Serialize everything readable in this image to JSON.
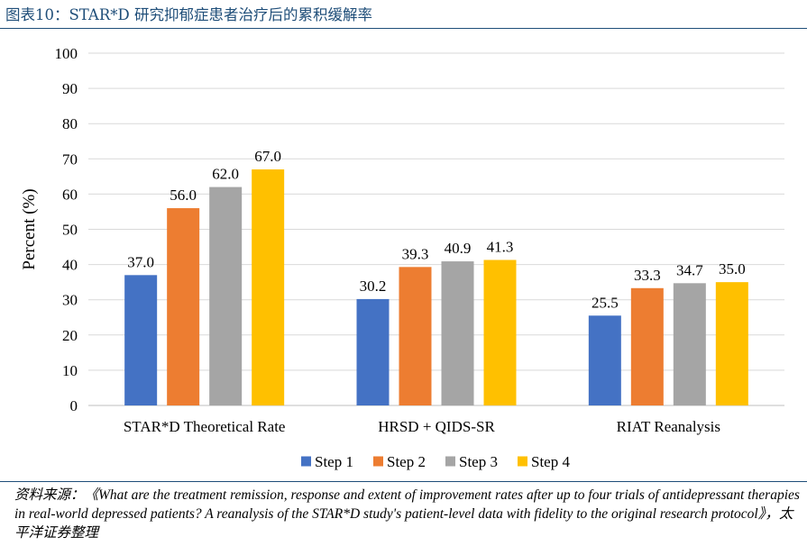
{
  "header": {
    "title": "图表10：STAR*D 研究抑郁症患者治疗后的累积缓解率"
  },
  "chart_data": {
    "type": "bar",
    "title": "",
    "xlabel": "",
    "ylabel": "Percent (%)",
    "ylim": [
      0,
      100
    ],
    "yticks": [
      "0",
      "10",
      "20",
      "30",
      "40",
      "50",
      "60",
      "70",
      "80",
      "90",
      "100"
    ],
    "grid": true,
    "legend_position": "bottom",
    "categories": [
      "STAR*D Theoretical Rate",
      "HRSD + QIDS-SR",
      "RIAT Reanalysis"
    ],
    "series": [
      {
        "name": "Step 1",
        "color": "#4472c4",
        "values": [
          37.0,
          30.2,
          25.5
        ],
        "labels": [
          "37.0",
          "30.2",
          "25.5"
        ]
      },
      {
        "name": "Step 2",
        "color": "#ed7d31",
        "values": [
          56.0,
          39.3,
          33.3
        ],
        "labels": [
          "56.0",
          "39.3",
          "33.3"
        ]
      },
      {
        "name": "Step 3",
        "color": "#a5a5a5",
        "values": [
          62.0,
          40.9,
          34.7
        ],
        "labels": [
          "62.0",
          "40.9",
          "34.7"
        ]
      },
      {
        "name": "Step 4",
        "color": "#ffc000",
        "values": [
          67.0,
          41.3,
          35.0
        ],
        "labels": [
          "67.0",
          "41.3",
          "35.0"
        ]
      }
    ]
  },
  "footer": {
    "source": "资料来源：《What are the treatment remission, response and extent of improvement rates after up to four trials of antidepressant therapies in real-world depressed patients? A reanalysis of the STAR*D study's patient-level data with fidelity to the original research protocol》，太平洋证券整理"
  }
}
